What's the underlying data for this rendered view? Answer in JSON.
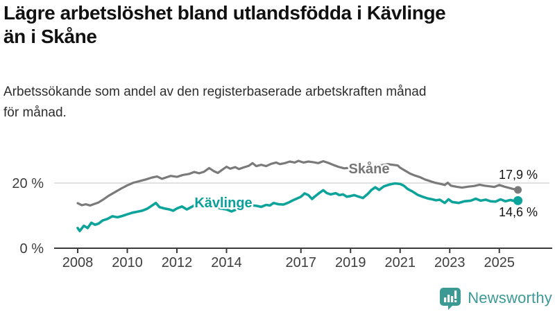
{
  "header": {
    "title_lines": [
      "Lägre arbetslöshet bland utlandsfödda i Kävlinge",
      "än i Skåne"
    ],
    "subtitle_lines": [
      "Arbetssökande som andel av den registerbaserade arbetskraften månad",
      "för månad."
    ]
  },
  "branding": {
    "logo_text": "Newsworthy",
    "logo_color": "#3C9A95",
    "logo_icon": "bar-chart-speech-bubble"
  },
  "chart_data": {
    "type": "line",
    "title": "Lägre arbetslöshet bland utlandsfödda i Kävlinge än i Skåne",
    "subtitle": "Arbetssökande som andel av den registerbaserade arbetskraften månad för månad.",
    "unit": "%",
    "x_range": [
      2008,
      2025.75
    ],
    "ylim": [
      0,
      27.5
    ],
    "grid": "single-line-at-20",
    "x_ticks": [
      2008,
      2010,
      2012,
      2014,
      2017,
      2019,
      2021,
      2023,
      2025
    ],
    "y_ticks": [
      {
        "value": 0,
        "label": "0 %"
      },
      {
        "value": 20,
        "label": "20 %"
      }
    ],
    "colors": {
      "axis": "#3a3a3a",
      "axis_text": "#3d3d3d",
      "gridline": "#d9d9d9",
      "end_label_text": "#141414"
    },
    "legend_position": "inline-labels-on-lines",
    "series": [
      {
        "name": "Skåne",
        "color": "#7a7a7a",
        "label_color": "#757575",
        "end_value": 17.9,
        "end_label": "17,9 %",
        "points": [
          [
            2008.0,
            13.8
          ],
          [
            2008.17,
            13.2
          ],
          [
            2008.33,
            13.5
          ],
          [
            2008.5,
            13.1
          ],
          [
            2008.67,
            13.6
          ],
          [
            2008.83,
            14.0
          ],
          [
            2009.0,
            14.8
          ],
          [
            2009.25,
            16.1
          ],
          [
            2009.5,
            17.2
          ],
          [
            2009.75,
            18.3
          ],
          [
            2010.0,
            19.3
          ],
          [
            2010.25,
            20.1
          ],
          [
            2010.5,
            20.6
          ],
          [
            2010.75,
            21.1
          ],
          [
            2011.0,
            21.7
          ],
          [
            2011.2,
            22.0
          ],
          [
            2011.4,
            21.3
          ],
          [
            2011.6,
            21.8
          ],
          [
            2011.75,
            22.2
          ],
          [
            2012.0,
            21.9
          ],
          [
            2012.25,
            22.5
          ],
          [
            2012.5,
            22.8
          ],
          [
            2012.7,
            23.4
          ],
          [
            2012.9,
            23.0
          ],
          [
            2013.1,
            23.5
          ],
          [
            2013.3,
            24.6
          ],
          [
            2013.5,
            23.6
          ],
          [
            2013.65,
            23.1
          ],
          [
            2013.85,
            24.2
          ],
          [
            2014.0,
            25.0
          ],
          [
            2014.15,
            24.4
          ],
          [
            2014.35,
            24.9
          ],
          [
            2014.5,
            24.3
          ],
          [
            2014.7,
            24.8
          ],
          [
            2014.9,
            25.3
          ],
          [
            2015.05,
            26.1
          ],
          [
            2015.2,
            25.2
          ],
          [
            2015.4,
            25.6
          ],
          [
            2015.6,
            25.2
          ],
          [
            2015.8,
            25.9
          ],
          [
            2016.0,
            26.3
          ],
          [
            2016.15,
            25.8
          ],
          [
            2016.35,
            26.1
          ],
          [
            2016.55,
            26.6
          ],
          [
            2016.75,
            26.3
          ],
          [
            2016.9,
            26.8
          ],
          [
            2017.1,
            26.3
          ],
          [
            2017.3,
            26.6
          ],
          [
            2017.5,
            26.4
          ],
          [
            2017.7,
            26.1
          ],
          [
            2017.9,
            26.7
          ],
          [
            2018.1,
            26.2
          ],
          [
            2018.3,
            25.6
          ],
          [
            2018.5,
            25.0
          ],
          [
            2018.75,
            24.5
          ],
          [
            2019.0,
            24.7
          ],
          [
            2019.3,
            25.0
          ],
          [
            2019.6,
            24.8
          ],
          [
            2019.9,
            25.1
          ],
          [
            2020.2,
            25.4
          ],
          [
            2020.5,
            25.8
          ],
          [
            2020.7,
            25.6
          ],
          [
            2020.9,
            25.4
          ],
          [
            2021.0,
            24.7
          ],
          [
            2021.2,
            23.8
          ],
          [
            2021.4,
            22.9
          ],
          [
            2021.6,
            22.3
          ],
          [
            2021.8,
            21.8
          ],
          [
            2022.0,
            21.1
          ],
          [
            2022.2,
            20.6
          ],
          [
            2022.4,
            20.1
          ],
          [
            2022.6,
            19.8
          ],
          [
            2022.8,
            19.4
          ],
          [
            2022.92,
            20.1
          ],
          [
            2023.05,
            19.2
          ],
          [
            2023.3,
            18.8
          ],
          [
            2023.5,
            18.6
          ],
          [
            2023.75,
            18.9
          ],
          [
            2024.0,
            19.1
          ],
          [
            2024.2,
            19.5
          ],
          [
            2024.4,
            19.2
          ],
          [
            2024.6,
            19.0
          ],
          [
            2024.8,
            18.8
          ],
          [
            2025.0,
            19.4
          ],
          [
            2025.2,
            18.9
          ],
          [
            2025.4,
            18.5
          ],
          [
            2025.6,
            18.1
          ],
          [
            2025.75,
            17.9
          ]
        ]
      },
      {
        "name": "Kävlinge",
        "color": "#0CA39B",
        "label_color": "#09A09A",
        "end_value": 14.6,
        "end_label": "14,6 %",
        "points": [
          [
            2008.0,
            6.2
          ],
          [
            2008.08,
            5.3
          ],
          [
            2008.25,
            6.9
          ],
          [
            2008.4,
            6.2
          ],
          [
            2008.55,
            7.8
          ],
          [
            2008.7,
            7.2
          ],
          [
            2008.85,
            7.6
          ],
          [
            2009.0,
            8.5
          ],
          [
            2009.2,
            9.0
          ],
          [
            2009.4,
            9.8
          ],
          [
            2009.6,
            9.5
          ],
          [
            2009.8,
            9.9
          ],
          [
            2010.0,
            10.4
          ],
          [
            2010.2,
            10.9
          ],
          [
            2010.4,
            11.2
          ],
          [
            2010.6,
            11.5
          ],
          [
            2010.8,
            12.1
          ],
          [
            2011.0,
            13.1
          ],
          [
            2011.15,
            13.9
          ],
          [
            2011.3,
            12.6
          ],
          [
            2011.5,
            12.2
          ],
          [
            2011.7,
            11.9
          ],
          [
            2011.85,
            11.5
          ],
          [
            2012.0,
            12.2
          ],
          [
            2012.2,
            12.8
          ],
          [
            2012.4,
            11.9
          ],
          [
            2012.6,
            12.7
          ],
          [
            2012.8,
            13.5
          ],
          [
            2013.0,
            13.2
          ],
          [
            2013.25,
            13.6
          ],
          [
            2013.5,
            12.9
          ],
          [
            2013.75,
            12.2
          ],
          [
            2014.0,
            11.9
          ],
          [
            2014.2,
            11.3
          ],
          [
            2014.4,
            11.9
          ],
          [
            2014.6,
            12.5
          ],
          [
            2014.8,
            12.9
          ],
          [
            2015.0,
            13.2
          ],
          [
            2015.2,
            13.0
          ],
          [
            2015.4,
            12.7
          ],
          [
            2015.6,
            13.3
          ],
          [
            2015.75,
            13.1
          ],
          [
            2015.9,
            13.9
          ],
          [
            2016.1,
            13.5
          ],
          [
            2016.3,
            13.4
          ],
          [
            2016.5,
            14.0
          ],
          [
            2016.65,
            14.6
          ],
          [
            2016.8,
            15.1
          ],
          [
            2017.0,
            15.8
          ],
          [
            2017.15,
            16.8
          ],
          [
            2017.3,
            16.3
          ],
          [
            2017.45,
            15.1
          ],
          [
            2017.6,
            16.1
          ],
          [
            2017.75,
            17.0
          ],
          [
            2017.9,
            17.8
          ],
          [
            2018.05,
            16.9
          ],
          [
            2018.2,
            16.5
          ],
          [
            2018.4,
            16.9
          ],
          [
            2018.55,
            16.3
          ],
          [
            2018.7,
            16.5
          ],
          [
            2018.85,
            15.8
          ],
          [
            2019.0,
            16.0
          ],
          [
            2019.15,
            16.3
          ],
          [
            2019.3,
            15.9
          ],
          [
            2019.5,
            15.4
          ],
          [
            2019.7,
            16.7
          ],
          [
            2019.85,
            17.9
          ],
          [
            2020.0,
            18.7
          ],
          [
            2020.15,
            17.9
          ],
          [
            2020.35,
            19.0
          ],
          [
            2020.6,
            19.6
          ],
          [
            2020.8,
            19.9
          ],
          [
            2021.0,
            19.7
          ],
          [
            2021.15,
            19.2
          ],
          [
            2021.3,
            18.2
          ],
          [
            2021.5,
            17.4
          ],
          [
            2021.7,
            16.4
          ],
          [
            2021.9,
            15.8
          ],
          [
            2022.1,
            15.3
          ],
          [
            2022.3,
            15.0
          ],
          [
            2022.45,
            14.7
          ],
          [
            2022.6,
            14.9
          ],
          [
            2022.8,
            13.9
          ],
          [
            2022.95,
            15.0
          ],
          [
            2023.1,
            14.2
          ],
          [
            2023.35,
            13.9
          ],
          [
            2023.6,
            14.4
          ],
          [
            2023.85,
            14.6
          ],
          [
            2024.05,
            15.2
          ],
          [
            2024.25,
            14.6
          ],
          [
            2024.45,
            14.9
          ],
          [
            2024.65,
            14.4
          ],
          [
            2024.85,
            14.3
          ],
          [
            2025.05,
            15.0
          ],
          [
            2025.25,
            14.4
          ],
          [
            2025.45,
            14.8
          ],
          [
            2025.6,
            14.5
          ],
          [
            2025.75,
            14.6
          ]
        ]
      }
    ]
  }
}
